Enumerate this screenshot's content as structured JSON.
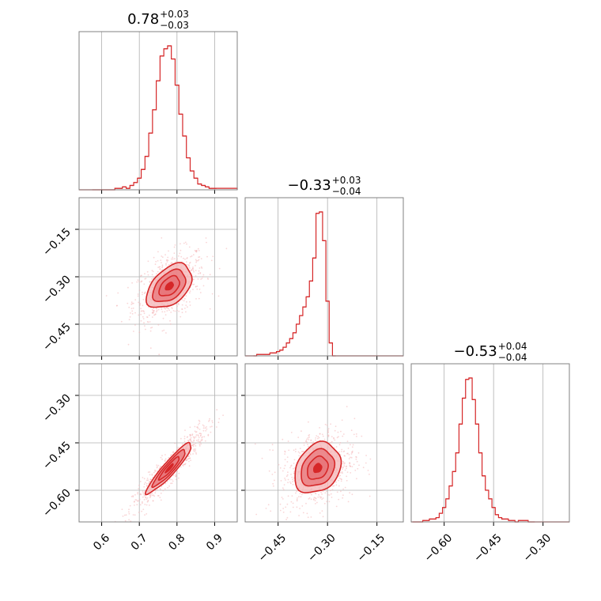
{
  "figure": {
    "type": "corner-plot"
  },
  "colors": {
    "accent": "#d62728",
    "fill_light": "#f4b4b6",
    "fill_mid": "#e8757a",
    "fill_dark": "#d62728",
    "grid": "#b0b0b0",
    "frame": "#808080"
  },
  "chart_data": [
    {
      "type": "histogram",
      "panel": "diag-0",
      "title": {
        "value": "0.78",
        "upper": "+0.03",
        "lower": "−0.03"
      },
      "xlim": [
        0.54,
        0.96
      ],
      "xticks": [
        0.6,
        0.7,
        0.8,
        0.9
      ],
      "grid": true,
      "bins": [
        0.58,
        0.59,
        0.6,
        0.61,
        0.62,
        0.63,
        0.64,
        0.65,
        0.66,
        0.67,
        0.68,
        0.69,
        0.7,
        0.71,
        0.72,
        0.73,
        0.74,
        0.75,
        0.76,
        0.77,
        0.78,
        0.79,
        0.8,
        0.81,
        0.82,
        0.83,
        0.84,
        0.85,
        0.86,
        0.87,
        0.88,
        0.89,
        0.9
      ],
      "counts": [
        0,
        0,
        0,
        0,
        0,
        0,
        1,
        1,
        2,
        1,
        3,
        5,
        8,
        14,
        23,
        39,
        55,
        75,
        92,
        97,
        99,
        90,
        72,
        52,
        37,
        22,
        13,
        8,
        4,
        3,
        2,
        1,
        1
      ]
    },
    {
      "type": "histogram",
      "panel": "diag-1",
      "title": {
        "value": "−0.33",
        "upper": "+0.03",
        "lower": "−0.04"
      },
      "xlim": [
        -0.55,
        -0.07
      ],
      "xticks": [
        -0.45,
        -0.3,
        -0.15
      ],
      "xticklabels": [
        "−0.45",
        "−0.30",
        "−0.15"
      ],
      "grid": true,
      "bins": [
        -0.52,
        -0.51,
        -0.5,
        -0.49,
        -0.48,
        -0.47,
        -0.46,
        -0.45,
        -0.44,
        -0.43,
        -0.42,
        -0.41,
        -0.4,
        -0.39,
        -0.38,
        -0.37,
        -0.36,
        -0.35,
        -0.34,
        -0.33,
        -0.32,
        -0.31,
        -0.3,
        -0.29,
        -0.28
      ],
      "counts": [
        0,
        1,
        1,
        1,
        1,
        2,
        2,
        3,
        4,
        6,
        9,
        12,
        16,
        22,
        28,
        34,
        41,
        52,
        68,
        99,
        100,
        80,
        38,
        9,
        0
      ]
    },
    {
      "type": "histogram",
      "panel": "diag-2",
      "title": {
        "value": "−0.53",
        "upper": "+0.04",
        "lower": "−0.04"
      },
      "xlim": [
        -0.7,
        -0.22
      ],
      "xticks": [
        -0.6,
        -0.45,
        -0.3
      ],
      "xticklabels": [
        "−0.60",
        "−0.45",
        "−0.30"
      ],
      "grid": true,
      "bins": [
        -0.69,
        -0.68,
        -0.67,
        -0.66,
        -0.65,
        -0.64,
        -0.63,
        -0.62,
        -0.61,
        -0.6,
        -0.59,
        -0.58,
        -0.57,
        -0.56,
        -0.55,
        -0.54,
        -0.53,
        -0.52,
        -0.51,
        -0.5,
        -0.49,
        -0.48,
        -0.47,
        -0.46,
        -0.45,
        -0.44,
        -0.43,
        -0.42,
        -0.41,
        -0.4,
        -0.39,
        -0.38,
        -0.37,
        -0.36,
        -0.35,
        -0.34,
        -0.33
      ],
      "counts": [
        0,
        0,
        0,
        1,
        1,
        2,
        2,
        3,
        6,
        10,
        16,
        25,
        35,
        48,
        68,
        86,
        99,
        100,
        85,
        68,
        48,
        32,
        22,
        16,
        10,
        5,
        3,
        2,
        2,
        1,
        1,
        0,
        1,
        1,
        1,
        0,
        0
      ]
    },
    {
      "type": "scatter-density",
      "panel": "lower-1-0",
      "xlim": [
        0.54,
        0.96
      ],
      "ylim": [
        -0.55,
        -0.05
      ],
      "xticks": [
        0.6,
        0.7,
        0.8,
        0.9
      ],
      "yticks": [
        -0.15,
        -0.3,
        -0.45
      ],
      "yticklabels": [
        "−0.15",
        "−0.30",
        "−0.45"
      ],
      "grid": true,
      "center": [
        0.78,
        -0.33
      ],
      "sigma": [
        0.03,
        0.035
      ],
      "correlation": 0.45,
      "n_points": 700
    },
    {
      "type": "scatter-density",
      "panel": "lower-2-0",
      "xlim": [
        0.54,
        0.96
      ],
      "ylim": [
        -0.7,
        -0.2
      ],
      "xticks": [
        0.6,
        0.7,
        0.8,
        0.9
      ],
      "xticklabels": [
        "0.6",
        "0.7",
        "0.8",
        "0.9"
      ],
      "yticks": [
        -0.3,
        -0.45,
        -0.6
      ],
      "yticklabels": [
        "−0.30",
        "−0.45",
        "−0.60"
      ],
      "grid": true,
      "center": [
        0.78,
        -0.53
      ],
      "sigma": [
        0.03,
        0.04
      ],
      "correlation": 0.93,
      "n_points": 700
    },
    {
      "type": "scatter-density",
      "panel": "lower-2-1",
      "xlim": [
        -0.55,
        -0.07
      ],
      "ylim": [
        -0.7,
        -0.2
      ],
      "xticks": [
        -0.45,
        -0.3,
        -0.15
      ],
      "xticklabels": [
        "−0.45",
        "−0.30",
        "−0.15"
      ],
      "yticks": [
        -0.3,
        -0.45,
        -0.6
      ],
      "grid": true,
      "center": [
        -0.33,
        -0.53
      ],
      "sigma": [
        0.035,
        0.04
      ],
      "correlation": 0.25,
      "n_points": 700
    }
  ]
}
